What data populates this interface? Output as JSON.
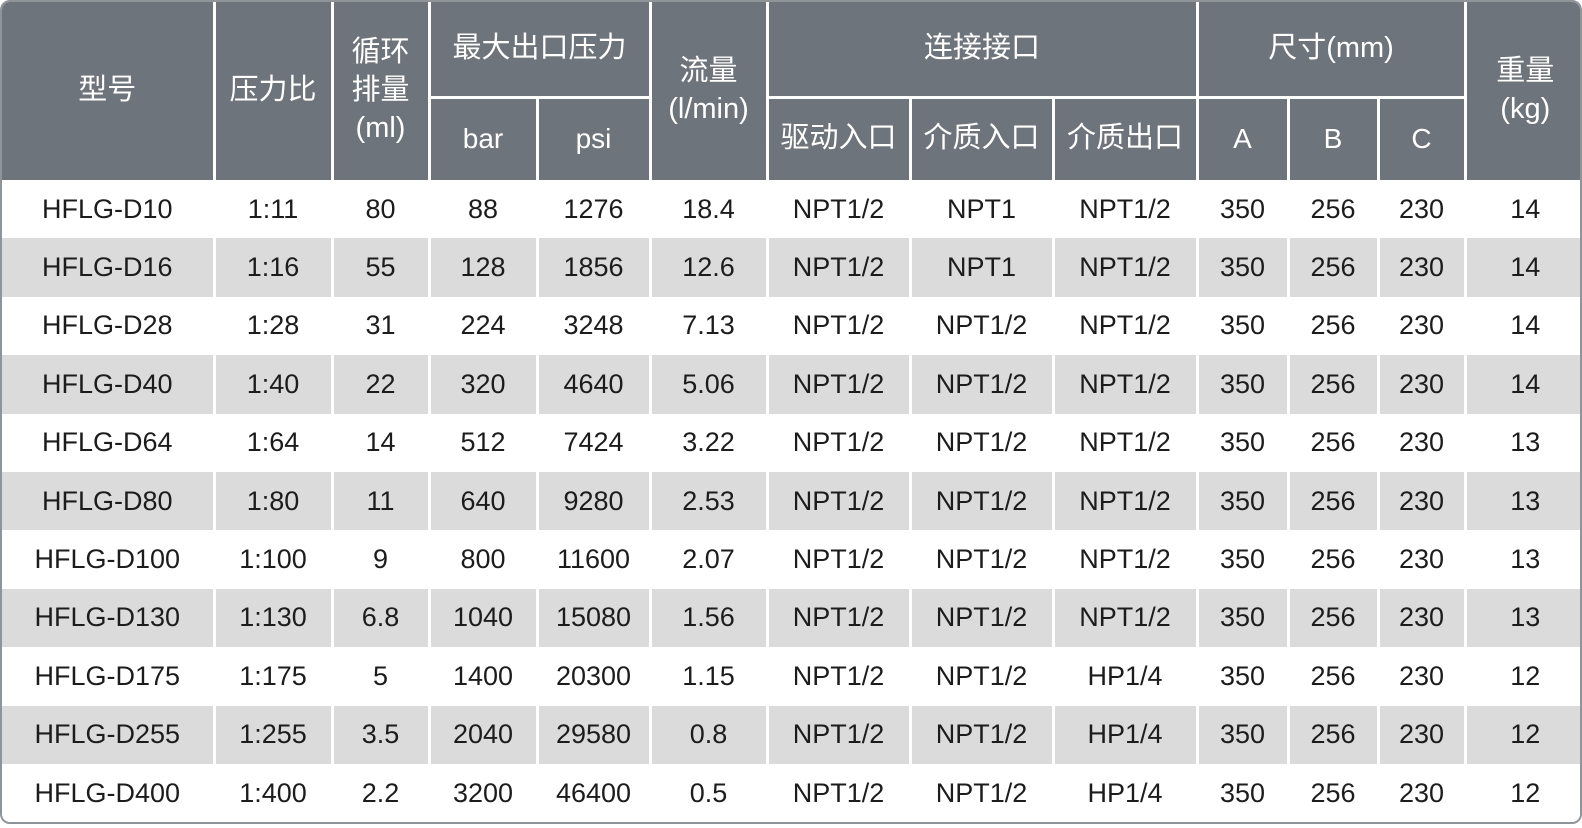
{
  "colors": {
    "header_bg": "#6d747b",
    "header_text": "#ffffff",
    "alt_row_bg": "#dbdbdb",
    "row_bg": "#ffffff",
    "divider": "#ffffff",
    "outer_border": "#8f9499",
    "body_text": "#1c1c1c"
  },
  "chart_data": {
    "type": "table",
    "header": {
      "model": "型号",
      "pressure_ratio": "压力比",
      "cycle_displacement_lines": [
        "循环",
        "排量",
        "(ml)"
      ],
      "max_outlet_pressure": "最大出口压力",
      "bar": "bar",
      "psi": "psi",
      "flow_lines": [
        "流量",
        "(l/min)"
      ],
      "connection": "连接接口",
      "drive_inlet": "驱动入口",
      "media_inlet": "介质入口",
      "media_outlet": "介质出口",
      "dimensions": "尺寸(mm)",
      "dim_a": "A",
      "dim_b": "B",
      "dim_c": "C",
      "weight_lines": [
        "重量",
        "(kg)"
      ]
    },
    "column_keys": [
      "model",
      "pressure-ratio",
      "cycle-displacement-ml",
      "max-pressure-bar",
      "max-pressure-psi",
      "flow-l-min",
      "drive-inlet",
      "media-inlet",
      "media-outlet",
      "dim-a",
      "dim-b",
      "dim-c",
      "weight-kg"
    ],
    "rows": [
      [
        "HFLG-D10",
        "1:11",
        "80",
        "88",
        "1276",
        "18.4",
        "NPT1/2",
        "NPT1",
        "NPT1/2",
        "350",
        "256",
        "230",
        "14"
      ],
      [
        "HFLG-D16",
        "1:16",
        "55",
        "128",
        "1856",
        "12.6",
        "NPT1/2",
        "NPT1",
        "NPT1/2",
        "350",
        "256",
        "230",
        "14"
      ],
      [
        "HFLG-D28",
        "1:28",
        "31",
        "224",
        "3248",
        "7.13",
        "NPT1/2",
        "NPT1/2",
        "NPT1/2",
        "350",
        "256",
        "230",
        "14"
      ],
      [
        "HFLG-D40",
        "1:40",
        "22",
        "320",
        "4640",
        "5.06",
        "NPT1/2",
        "NPT1/2",
        "NPT1/2",
        "350",
        "256",
        "230",
        "14"
      ],
      [
        "HFLG-D64",
        "1:64",
        "14",
        "512",
        "7424",
        "3.22",
        "NPT1/2",
        "NPT1/2",
        "NPT1/2",
        "350",
        "256",
        "230",
        "13"
      ],
      [
        "HFLG-D80",
        "1:80",
        "11",
        "640",
        "9280",
        "2.53",
        "NPT1/2",
        "NPT1/2",
        "NPT1/2",
        "350",
        "256",
        "230",
        "13"
      ],
      [
        "HFLG-D100",
        "1:100",
        "9",
        "800",
        "11600",
        "2.07",
        "NPT1/2",
        "NPT1/2",
        "NPT1/2",
        "350",
        "256",
        "230",
        "13"
      ],
      [
        "HFLG-D130",
        "1:130",
        "6.8",
        "1040",
        "15080",
        "1.56",
        "NPT1/2",
        "NPT1/2",
        "NPT1/2",
        "350",
        "256",
        "230",
        "13"
      ],
      [
        "HFLG-D175",
        "1:175",
        "5",
        "1400",
        "20300",
        "1.15",
        "NPT1/2",
        "NPT1/2",
        "HP1/4",
        "350",
        "256",
        "230",
        "12"
      ],
      [
        "HFLG-D255",
        "1:255",
        "3.5",
        "2040",
        "29580",
        "0.8",
        "NPT1/2",
        "NPT1/2",
        "HP1/4",
        "350",
        "256",
        "230",
        "12"
      ],
      [
        "HFLG-D400",
        "1:400",
        "2.2",
        "3200",
        "46400",
        "0.5",
        "NPT1/2",
        "NPT1/2",
        "HP1/4",
        "350",
        "256",
        "230",
        "12"
      ]
    ]
  }
}
